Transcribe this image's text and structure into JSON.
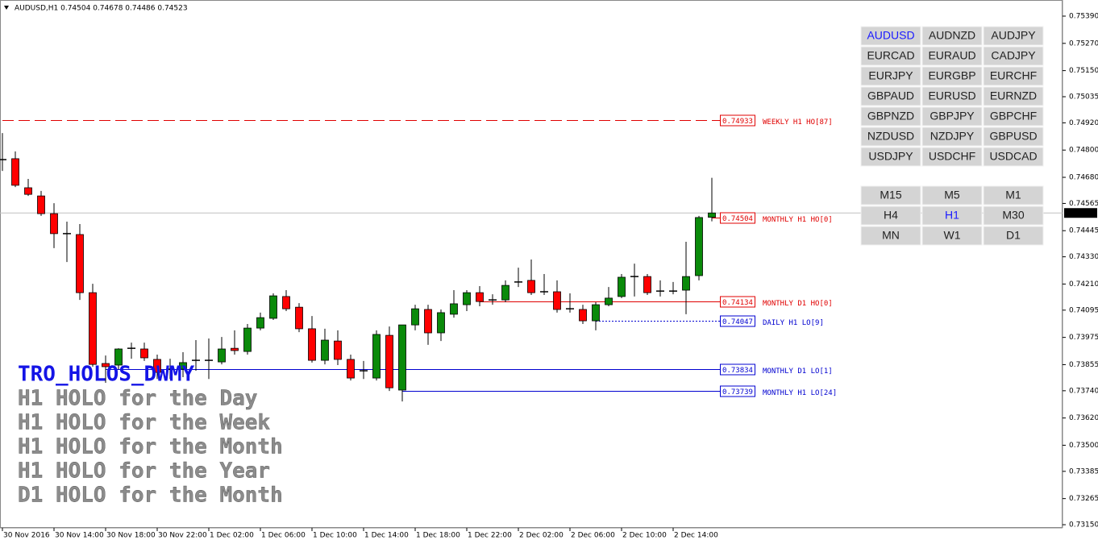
{
  "chart_data": {
    "type": "candlestick",
    "title": "AUDUSD,H1  0.74504 0.74678 0.74486 0.74523",
    "categories": [
      "30 Nov 2016",
      null,
      null,
      null,
      "30 Nov 14:00",
      null,
      null,
      null,
      "30 Nov 18:00",
      null,
      null,
      null,
      "30 Nov 22:00",
      null,
      null,
      null,
      "1 Dec 02:00",
      null,
      null,
      null,
      "1 Dec 06:00",
      null,
      null,
      null,
      "1 Dec 10:00",
      null,
      null,
      null,
      "1 Dec 14:00",
      null,
      null,
      null,
      "1 Dec 18:00",
      null,
      null,
      null,
      "1 Dec 22:00",
      null,
      null,
      null,
      "2 Dec 02:00",
      null,
      null,
      null,
      "2 Dec 06:00",
      null,
      null,
      null,
      "2 Dec 10:00",
      null,
      null,
      null,
      "2 Dec 14:00",
      null,
      null,
      null
    ],
    "open": [
      0.74758,
      0.74762,
      0.74634,
      0.74598,
      0.7452,
      0.74432,
      0.74428,
      0.74172,
      0.7386,
      0.73853,
      0.73927,
      0.73924,
      0.73878,
      0.73835,
      0.73835,
      0.73874,
      0.73874,
      0.73867,
      0.73927,
      0.73913,
      0.74016,
      0.74059,
      0.74155,
      0.74108,
      0.74013,
      0.73874,
      0.73959,
      0.73878,
      0.73828,
      0.73796,
      0.73984,
      0.73743,
      0.7403,
      0.74098,
      0.73995,
      0.74077,
      0.74119,
      0.74172,
      0.7414,
      0.7414,
      0.74219,
      0.74226,
      0.74176,
      0.74176,
      0.74101,
      0.74098,
      0.74048,
      0.74119,
      0.74155,
      0.74243,
      0.74243,
      0.74179,
      0.74179,
      0.74183,
      0.74247,
      0.74504
    ],
    "high": [
      0.74875,
      0.74794,
      0.74673,
      0.7462,
      0.74566,
      0.74485,
      0.74474,
      0.74211,
      0.73895,
      0.73927,
      0.73952,
      0.73952,
      0.73899,
      0.73881,
      0.7391,
      0.73963,
      0.7397,
      0.73977,
      0.74006,
      0.74034,
      0.74084,
      0.74169,
      0.74183,
      0.74126,
      0.74069,
      0.74013,
      0.74006,
      0.73899,
      0.73871,
      0.74006,
      0.74023,
      0.7403,
      0.74119,
      0.74119,
      0.74098,
      0.74183,
      0.74183,
      0.74201,
      0.74165,
      0.74226,
      0.74282,
      0.74318,
      0.74254,
      0.74226,
      0.74169,
      0.74119,
      0.7413,
      0.74197,
      0.74254,
      0.743,
      0.74254,
      0.74226,
      0.74219,
      0.74396,
      0.7451,
      0.74678
    ],
    "low": [
      0.74708,
      0.74637,
      0.74598,
      0.7451,
      0.74368,
      0.74307,
      0.7414,
      0.73846,
      0.73775,
      0.73835,
      0.73881,
      0.73871,
      0.73792,
      0.73792,
      0.738,
      0.73828,
      0.73792,
      0.73856,
      0.73899,
      0.73899,
      0.74006,
      0.74052,
      0.74091,
      0.73998,
      0.73864,
      0.73856,
      0.73853,
      0.73785,
      0.73792,
      0.73785,
      0.73739,
      0.73693,
      0.74006,
      0.73942,
      0.73959,
      0.74062,
      0.74091,
      0.74112,
      0.74119,
      0.7413,
      0.74197,
      0.74162,
      0.74162,
      0.74084,
      0.74084,
      0.74034,
      0.74006,
      0.74112,
      0.74148,
      0.74155,
      0.74162,
      0.74155,
      0.74165,
      0.74077,
      0.74226,
      0.74486
    ],
    "close": [
      0.74758,
      0.74645,
      0.74605,
      0.7452,
      0.74432,
      0.74432,
      0.74172,
      0.73856,
      0.73846,
      0.73924,
      0.73927,
      0.73885,
      0.73821,
      0.73835,
      0.73864,
      0.73874,
      0.73874,
      0.73924,
      0.73917,
      0.74016,
      0.74062,
      0.74158,
      0.74101,
      0.74013,
      0.73874,
      0.73963,
      0.73878,
      0.73796,
      0.73828,
      0.73988,
      0.73753,
      0.7403,
      0.74101,
      0.73995,
      0.74084,
      0.74123,
      0.74172,
      0.74133,
      0.7414,
      0.74204,
      0.74219,
      0.74172,
      0.74176,
      0.74098,
      0.74101,
      0.74048,
      0.74119,
      0.74148,
      0.7424,
      0.74243,
      0.74172,
      0.74179,
      0.74179,
      0.74243,
      0.74503,
      0.74523
    ],
    "up_color": "#0a8a0a",
    "down_color": "#ff0000",
    "doji_color": "#000000",
    "ylim": [
      0.73136,
      0.75461
    ],
    "yticks": [
      {
        "value": 0.7539,
        "label": "0.75390"
      },
      {
        "value": 0.7527,
        "label": "0.75270"
      },
      {
        "value": 0.7515,
        "label": "0.75150"
      },
      {
        "value": 0.75035,
        "label": "0.75035"
      },
      {
        "value": 0.7492,
        "label": "0.74920"
      },
      {
        "value": 0.748,
        "label": "0.74800"
      },
      {
        "value": 0.7468,
        "label": "0.74680"
      },
      {
        "value": 0.74565,
        "label": "0.74565"
      },
      {
        "value": 0.74445,
        "label": "0.74445"
      },
      {
        "value": 0.7433,
        "label": "0.74330"
      },
      {
        "value": 0.7421,
        "label": "0.74210"
      },
      {
        "value": 0.74095,
        "label": "0.74095"
      },
      {
        "value": 0.73975,
        "label": "0.73975"
      },
      {
        "value": 0.73855,
        "label": "0.73855"
      },
      {
        "value": 0.7374,
        "label": "0.73740"
      },
      {
        "value": 0.7362,
        "label": "0.73620"
      },
      {
        "value": 0.735,
        "label": "0.73500"
      },
      {
        "value": 0.73385,
        "label": "0.73385"
      },
      {
        "value": 0.73265,
        "label": "0.73265"
      },
      {
        "value": 0.7315,
        "label": "0.73150"
      }
    ],
    "current_price": 0.74523,
    "levels": [
      {
        "value": 0.74933,
        "name": "WEEKLY H1 HO[87]",
        "color": "#e00000",
        "style": "dashed"
      },
      {
        "value": 0.74504,
        "name": "MONTHLY H1 HO[0]",
        "color": "#e00000",
        "style": "solid"
      },
      {
        "value": 0.74134,
        "name": "MONTHLY D1 HO[0]",
        "color": "#e00000",
        "style": "solid"
      },
      {
        "value": 0.74047,
        "name": "DAILY H1 LO[9]",
        "color": "#0000d0",
        "style": "dotted"
      },
      {
        "value": 0.73834,
        "name": "MONTHLY D1 LO[1]",
        "color": "#0000d0",
        "style": "solid"
      },
      {
        "value": 0.73739,
        "name": "MONTHLY H1 LO[24]",
        "color": "#0000d0",
        "style": "solid"
      }
    ]
  },
  "overlay": {
    "title": "TRO_HOLOS_DWMY",
    "title_color": "#1414e6",
    "color": "#8c8c8c",
    "lines": [
      "H1 HOLO for the Day",
      "H1 HOLO for the Week",
      "H1 HOLO for the Month",
      "H1 HOLO for the Year",
      "D1 HOLO for the Month"
    ]
  },
  "symbol_buttons": {
    "labels": [
      "AUDUSD",
      "AUDNZD",
      "AUDJPY",
      "EURCAD",
      "EURAUD",
      "CADJPY",
      "EURJPY",
      "EURGBP",
      "EURCHF",
      "GBPAUD",
      "EURUSD",
      "EURNZD",
      "GBPNZD",
      "GBPJPY",
      "GBPCHF",
      "NZDUSD",
      "NZDJPY",
      "GBPUSD",
      "USDJPY",
      "USDCHF",
      "USDCAD"
    ],
    "active": 0
  },
  "timeframe_buttons": {
    "labels": [
      "M15",
      "M5",
      "M1",
      "H4",
      "H1",
      "M30",
      "MN",
      "W1",
      "D1"
    ],
    "active": 4
  }
}
